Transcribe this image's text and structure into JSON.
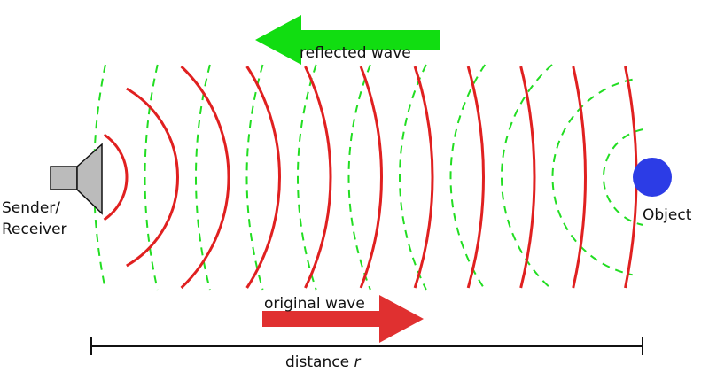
{
  "labels": {
    "sender": [
      "Sender/",
      "Receiver"
    ],
    "object": "Object",
    "reflected_wave": "reflected wave",
    "original_wave": "original wave",
    "distance": "distance ",
    "distance_var": "r"
  },
  "colors": {
    "original_wave": "#e02020",
    "reflected_wave": "#22dd22",
    "object": "#2c3ce6",
    "speaker_fill": "#bbbbbb",
    "reflected_arrow": "#11dd11",
    "original_arrow": "#e03030"
  }
}
